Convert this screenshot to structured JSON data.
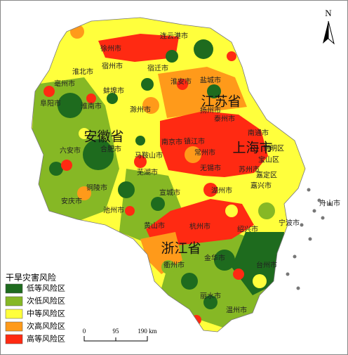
{
  "title": "干旱灾害风险",
  "legend": [
    {
      "label": "低等风险区",
      "color": "#1e6b1e"
    },
    {
      "label": "次低风险区",
      "color": "#86b825"
    },
    {
      "label": "中等风险区",
      "color": "#ffff3c"
    },
    {
      "label": "次高风险区",
      "color": "#ff9a1a"
    },
    {
      "label": "高等风险区",
      "color": "#ff2a12"
    }
  ],
  "provinces": [
    "江苏省",
    "安徽省",
    "上海市",
    "浙江省"
  ],
  "cities": [
    "连云港市",
    "徐州市",
    "宿州市",
    "淮北市",
    "宿迁市",
    "亳州市",
    "蚌埠市",
    "淮安市",
    "盐城市",
    "阜阳市",
    "淮南市",
    "滁州市",
    "扬州市",
    "泰州市",
    "六安市",
    "合肥市",
    "南京市",
    "镇江市",
    "常州市",
    "南通市",
    "马鞍山市",
    "芜湖市",
    "无锡市",
    "苏州市",
    "崇明区",
    "宝山区",
    "嘉定区",
    "铜陵市",
    "宣城市",
    "湖州市",
    "嘉兴市",
    "安庆市",
    "池州市",
    "黄山市",
    "杭州市",
    "舟山市",
    "绍兴市",
    "宁波市",
    "金华市",
    "衢州市",
    "台州市",
    "丽水市",
    "温州市"
  ],
  "north": "N",
  "scale": {
    "ticks": [
      "0",
      "95",
      "190 km"
    ]
  }
}
